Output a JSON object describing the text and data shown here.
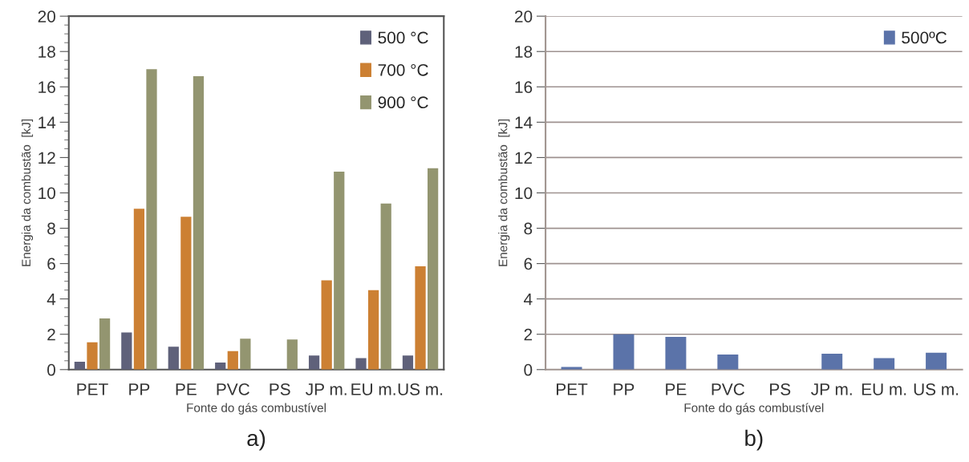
{
  "chart_data": [
    {
      "type": "bar",
      "xlabel": "Fonte do gás combustível",
      "ylabel": "Energia da combustão  [kJ]",
      "categories": [
        "PET",
        "PP",
        "PE",
        "PVC",
        "PS",
        "JP m.",
        "EU m.",
        "US m."
      ],
      "series": [
        {
          "name": "500 °C",
          "color": "#5f617a",
          "values": [
            0.45,
            2.1,
            1.3,
            0.4,
            null,
            0.8,
            0.65,
            0.8
          ]
        },
        {
          "name": "700 °C",
          "color": "#cc8033",
          "values": [
            1.55,
            9.1,
            8.65,
            1.05,
            null,
            5.05,
            4.5,
            5.85
          ]
        },
        {
          "name": "900 °C",
          "color": "#939570",
          "values": [
            2.9,
            17.0,
            16.6,
            1.75,
            1.7,
            11.2,
            9.4,
            11.4
          ]
        }
      ],
      "ylim": [
        0,
        20
      ],
      "yticks": [
        0,
        {
          "value": 0.5,
          "label": null
        },
        {
          "value": 1,
          "label": null
        },
        {
          "value": 1.5,
          "label": null
        },
        2,
        {
          "value": 2.5,
          "label": null
        },
        {
          "value": 3,
          "label": null
        },
        {
          "value": 3.5,
          "label": null
        },
        4,
        {
          "value": 4.5,
          "label": null
        },
        {
          "value": 5,
          "label": null
        },
        {
          "value": 5.5,
          "label": null
        },
        6,
        {
          "value": 6.5,
          "label": null
        },
        {
          "value": 7,
          "label": null
        },
        {
          "value": 7.5,
          "label": null
        },
        8,
        {
          "value": 8.5,
          "label": null
        },
        {
          "value": 9,
          "label": null
        },
        {
          "value": 9.5,
          "label": null
        },
        10,
        {
          "value": 10.5,
          "label": null
        },
        {
          "value": 11,
          "label": null
        },
        {
          "value": 11.5,
          "label": null
        },
        12,
        {
          "value": 12.5,
          "label": null
        },
        {
          "value": 13,
          "label": null
        },
        {
          "value": 13.5,
          "label": null
        },
        14,
        {
          "value": 14.5,
          "label": null
        },
        {
          "value": 15,
          "label": null
        },
        {
          "value": 15.5,
          "label": null
        },
        16,
        {
          "value": 16.5,
          "label": null
        },
        {
          "value": 17,
          "label": null
        },
        {
          "value": 17.5,
          "label": null
        },
        18,
        {
          "value": 18.5,
          "label": null
        },
        {
          "value": 19,
          "label": null
        },
        {
          "value": 19.5,
          "label": null
        },
        20
      ],
      "grid": false,
      "legend": "top right",
      "annotations": [
        "a)"
      ]
    },
    {
      "type": "bar",
      "xlabel": "Fonte do gás combustível",
      "ylabel": "Energia da combustão  [kJ]",
      "categories": [
        "PET",
        "PP",
        "PE",
        "PVC",
        "PS",
        "JP m.",
        "EU m.",
        "US m."
      ],
      "series": [
        {
          "name": "500ºC",
          "color": "#5b73a9",
          "values": [
            0.15,
            2.0,
            1.85,
            0.85,
            null,
            0.9,
            0.65,
            0.95
          ]
        }
      ],
      "ylim": [
        0,
        20
      ],
      "yticks": [
        0,
        2,
        4,
        6,
        8,
        10,
        12,
        14,
        16,
        18,
        20
      ],
      "grid": "y",
      "legend": "top right",
      "annotations": [
        "b)"
      ]
    }
  ]
}
